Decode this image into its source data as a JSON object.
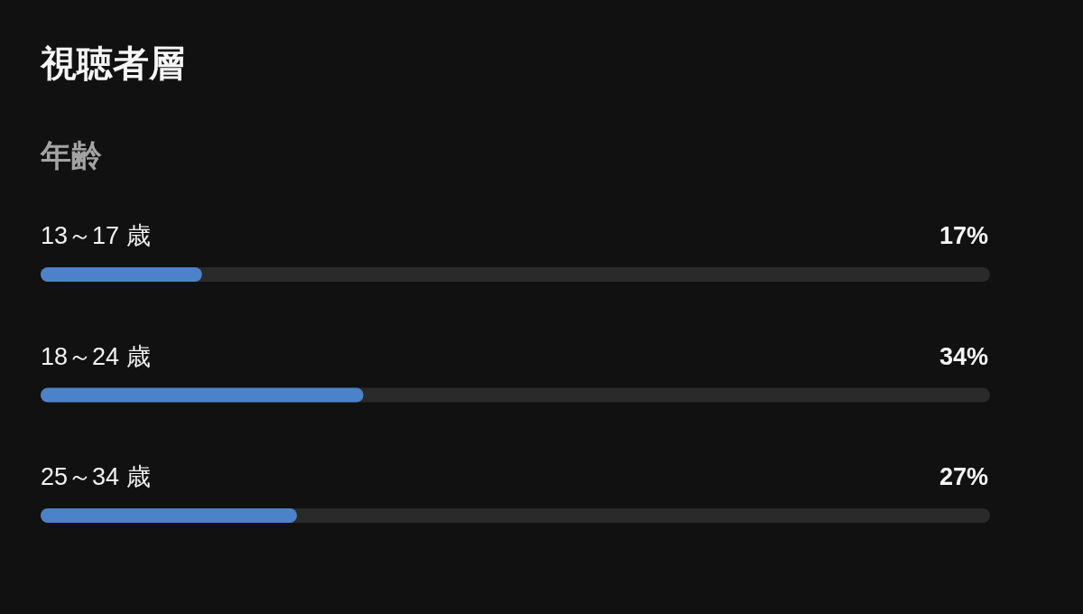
{
  "chart_data": {
    "type": "bar",
    "orientation": "horizontal",
    "title": "視聴者層",
    "subtitle": "年齢",
    "categories": [
      "13～17 歳",
      "18～24 歳",
      "25～34 歳"
    ],
    "values": [
      17,
      34,
      27
    ],
    "value_labels": [
      "17%",
      "34%",
      "27%"
    ],
    "color": "#4c82c8",
    "xlim": [
      0,
      100
    ]
  }
}
